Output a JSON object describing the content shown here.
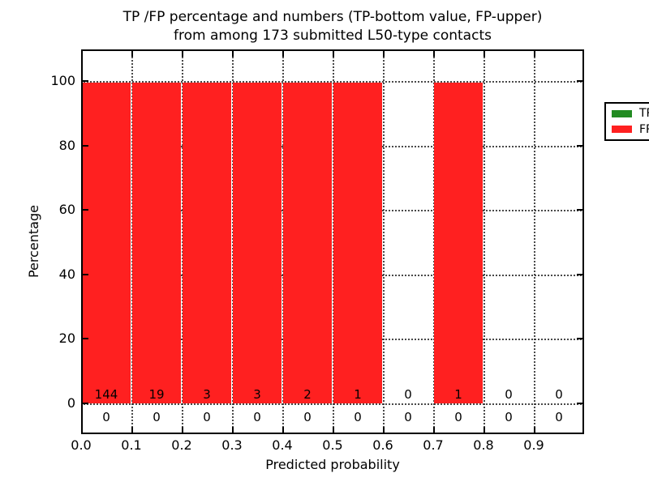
{
  "title": {
    "line1": "TP /FP percentage and numbers (TP-bottom value, FP-upper)",
    "line2": "from among 173 submitted L50-type contacts"
  },
  "axes": {
    "xlabel": "Predicted probability",
    "ylabel": "Percentage",
    "x_tick_labels": [
      "0.0",
      "0.1",
      "0.2",
      "0.3",
      "0.4",
      "0.5",
      "0.6",
      "0.7",
      "0.8",
      "0.9"
    ],
    "y_tick_labels": [
      "0",
      "20",
      "40",
      "60",
      "80",
      "100"
    ],
    "y_tick_values": [
      0,
      20,
      40,
      60,
      80,
      100
    ]
  },
  "legend": {
    "items": [
      {
        "label": "TP",
        "color": "#228B22"
      },
      {
        "label": "FP",
        "color": "#FF2020"
      }
    ]
  },
  "colors": {
    "tp": "#228B22",
    "fp": "#FF2020",
    "grid": "#2a2a2a",
    "background": "#ffffff"
  },
  "chart_data": {
    "type": "bar",
    "stacked": true,
    "title": "TP /FP percentage and numbers (TP-bottom value, FP-upper) from among 173 submitted L50-type contacts",
    "xlabel": "Predicted probability",
    "ylabel": "Percentage",
    "categories": [
      "0.0-0.1",
      "0.1-0.2",
      "0.2-0.3",
      "0.3-0.4",
      "0.4-0.5",
      "0.5-0.6",
      "0.6-0.7",
      "0.7-0.8",
      "0.8-0.9",
      "0.9-1.0"
    ],
    "series": [
      {
        "name": "TP",
        "color": "#228B22",
        "values": [
          0,
          0,
          0,
          0,
          0,
          0,
          0,
          0,
          0,
          0
        ]
      },
      {
        "name": "FP",
        "color": "#FF2020",
        "values": [
          100,
          100,
          100,
          100,
          100,
          100,
          0,
          100,
          0,
          0
        ]
      }
    ],
    "fp_counts": [
      144,
      19,
      3,
      3,
      2,
      1,
      0,
      1,
      0,
      0
    ],
    "tp_counts": [
      0,
      0,
      0,
      0,
      0,
      0,
      0,
      0,
      0,
      0
    ],
    "total_contacts": 173,
    "xlim": [
      0.0,
      1.0
    ],
    "ylim": [
      -10,
      110
    ],
    "grid": true,
    "grid_style": "dotted",
    "legend_position": "upper right"
  }
}
